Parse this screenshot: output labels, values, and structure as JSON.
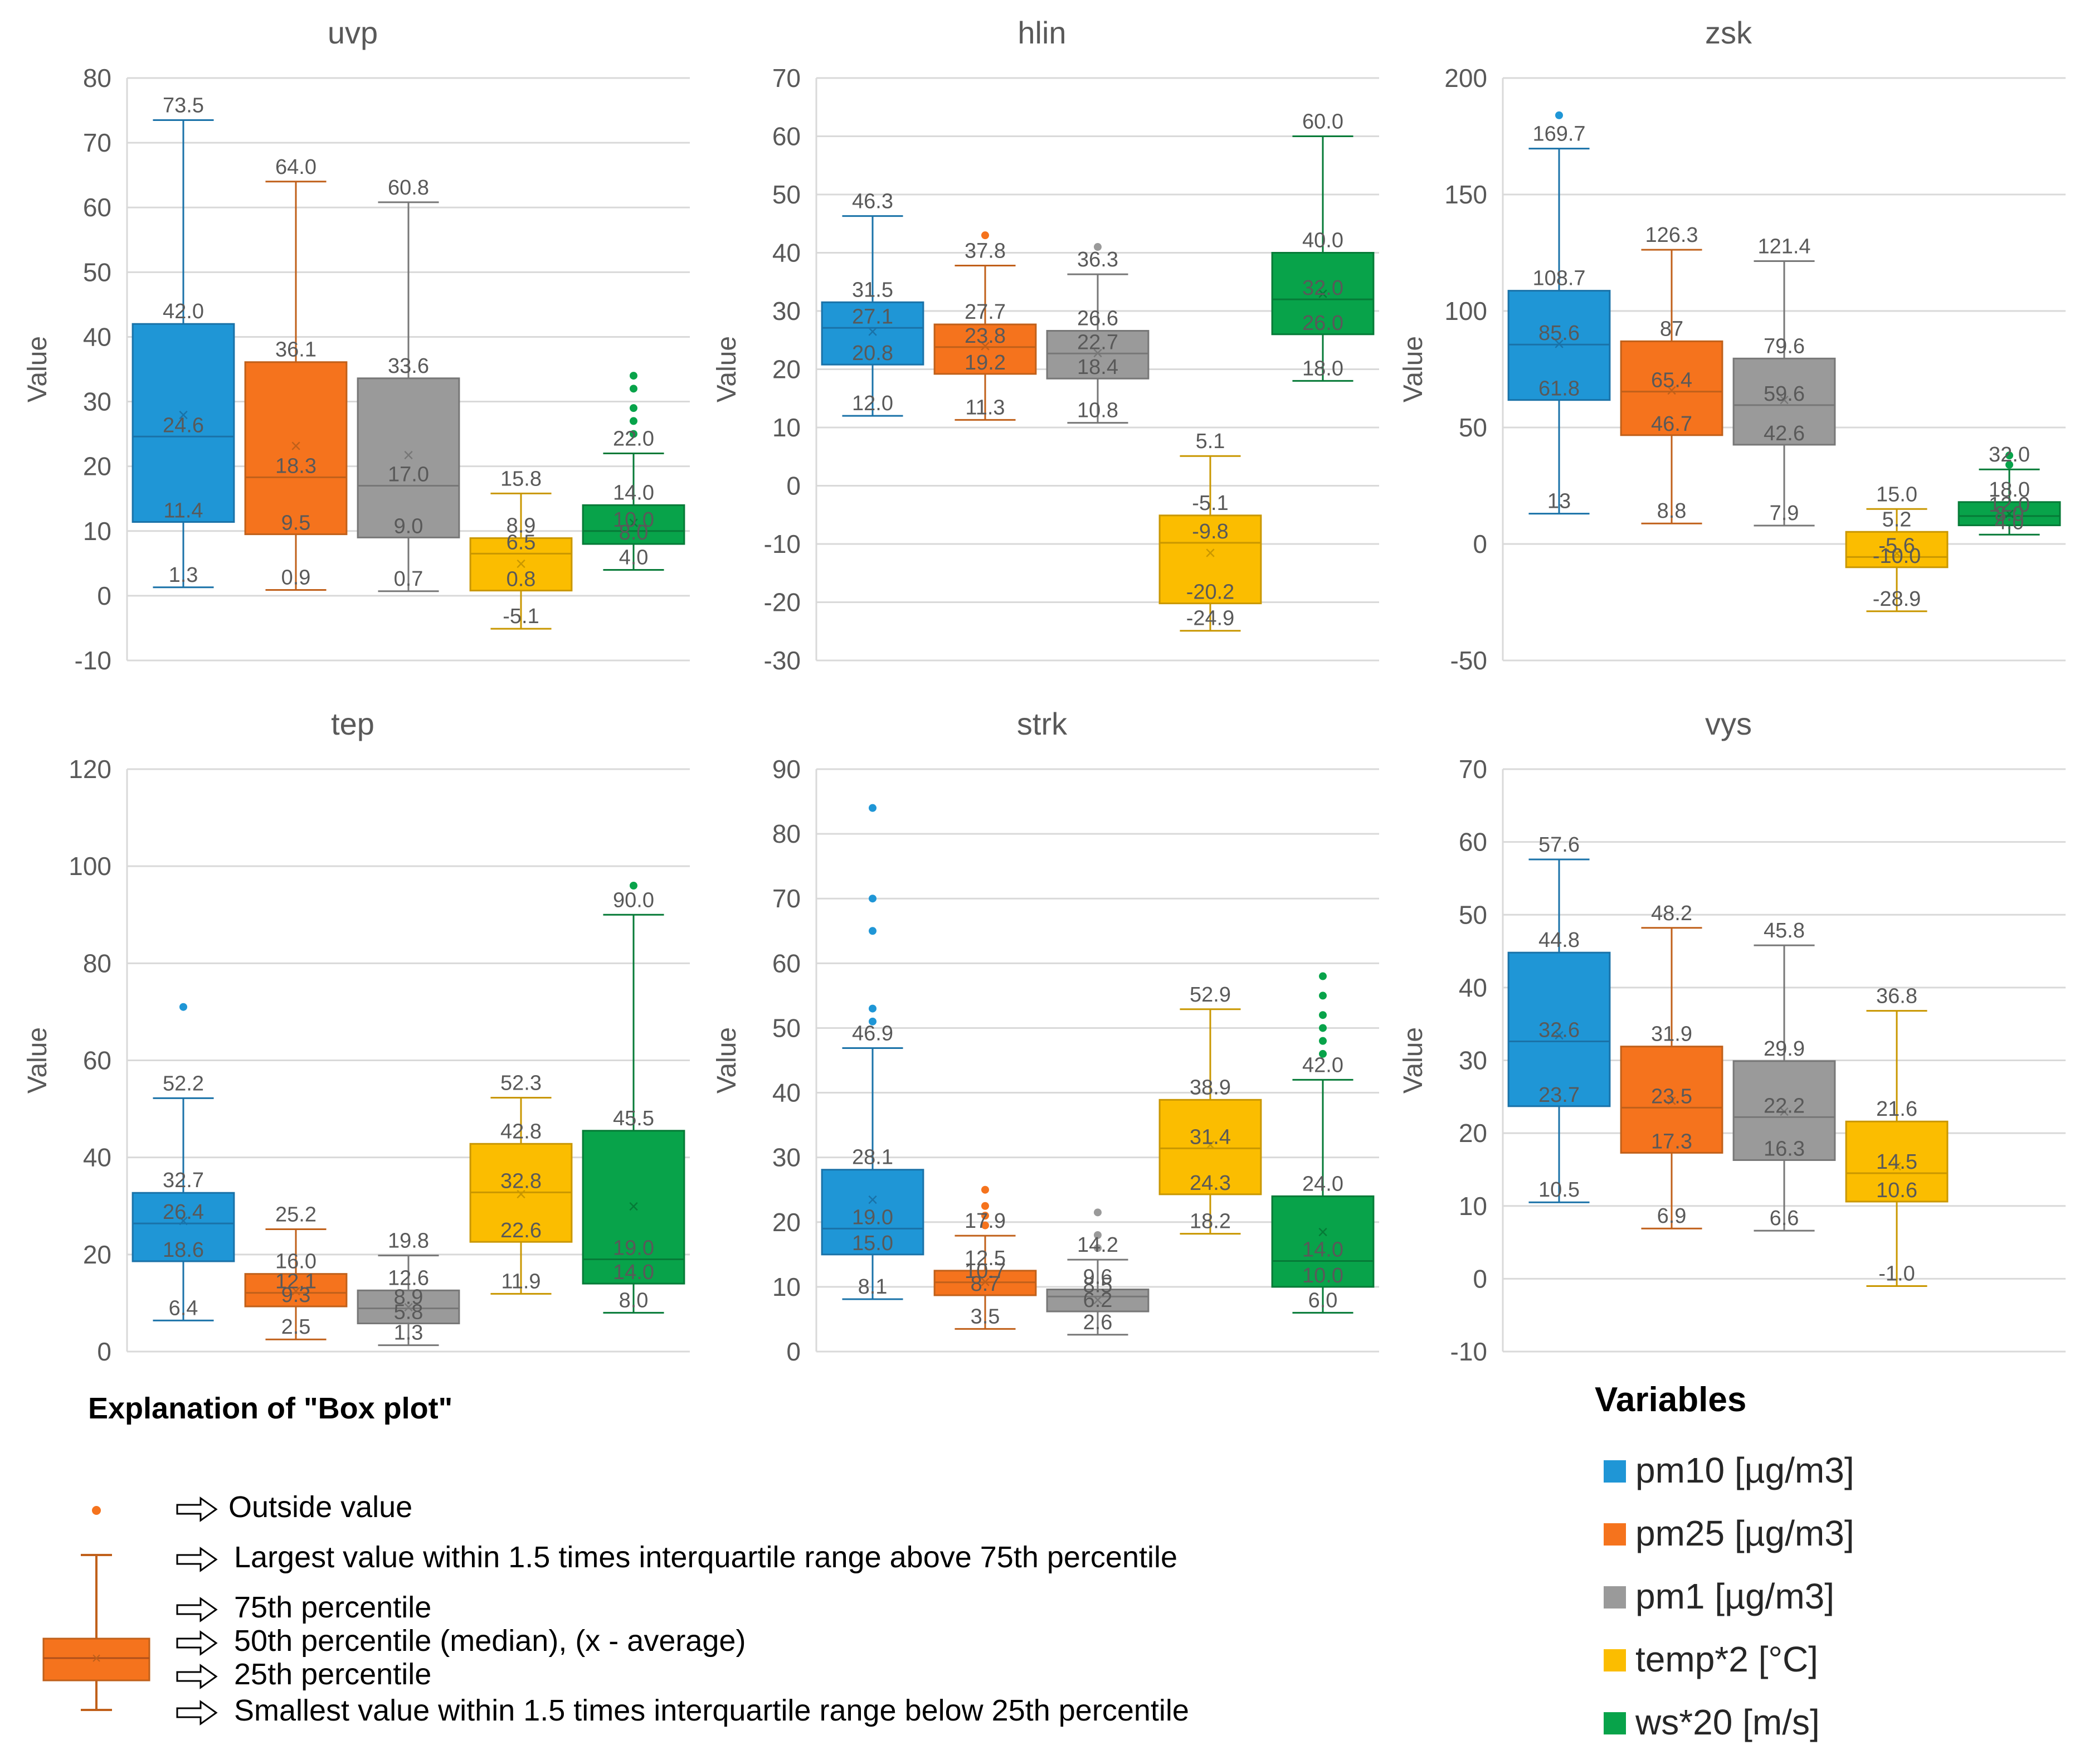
{
  "colors": {
    "pm10": "#1f96d6",
    "pm25": "#f5731d",
    "pm1": "#9a9a9a",
    "temp": "#fbbd00",
    "ws": "#08a34a",
    "grid": "#d9d9d9",
    "text": "#595959"
  },
  "axis_label": "Value",
  "explanation": {
    "title": "Explanation of \"Box plot\"",
    "items": [
      "Outside value",
      "Largest value within 1.5 times interquartile range above 75th percentile",
      "75th percentile",
      "50th percentile (median), (x - average)",
      "25th percentile",
      "Smallest value within 1.5 times interquartile range below 25th percentile"
    ]
  },
  "legend": {
    "title": "Variables",
    "items": [
      {
        "key": "pm10",
        "label": "pm10 [µg/m3]"
      },
      {
        "key": "pm25",
        "label": "pm25 [µg/m3]"
      },
      {
        "key": "pm1",
        "label": "pm1 [µg/m3]"
      },
      {
        "key": "temp",
        "label": "temp*2 [°C]"
      },
      {
        "key": "ws",
        "label": "ws*20 [m/s]"
      }
    ]
  },
  "chart_data": [
    {
      "type": "box",
      "title": "uvp",
      "ylabel": "Value",
      "ylim": [
        -10,
        80
      ],
      "yticks": [
        -10,
        0,
        10,
        20,
        30,
        40,
        50,
        60,
        70,
        80
      ],
      "series": [
        {
          "name": "pm10",
          "min": 1.3,
          "q1": 11.4,
          "median": 24.6,
          "q3": 42.0,
          "max": 73.5,
          "mean": 28.0,
          "outliers": [],
          "labels": {
            "max": "73.5",
            "q3": "42.0",
            "median": "24.6",
            "q1": "11.4",
            "min": "1.3"
          }
        },
        {
          "name": "pm25",
          "min": 0.9,
          "q1": 9.5,
          "median": 18.3,
          "q3": 36.1,
          "max": 64.0,
          "mean": 23.2,
          "outliers": [],
          "labels": {
            "max": "64.0",
            "q3": "36.1",
            "median": "18.3",
            "q1": "9.5",
            "min": "0.9"
          }
        },
        {
          "name": "pm1",
          "min": 0.7,
          "q1": 9.0,
          "median": 17.0,
          "q3": 33.6,
          "max": 60.8,
          "mean": 21.8,
          "outliers": [],
          "labels": {
            "max": "60.8",
            "q3": "33.6",
            "median": "17.0",
            "q1": "9.0",
            "min": "0.7"
          }
        },
        {
          "name": "temp",
          "min": -5.1,
          "q1": 0.8,
          "median": 6.5,
          "q3": 8.9,
          "max": 15.8,
          "mean": 5.0,
          "outliers": [],
          "labels": {
            "max": "15.8",
            "q3": "8.9",
            "median": "6.5",
            "q1": "0.8",
            "min": "-5.1"
          }
        },
        {
          "name": "ws",
          "min": 4.0,
          "q1": 8.0,
          "median": 10.0,
          "q3": 14.0,
          "max": 22.0,
          "mean": 11.3,
          "outliers": [
            25,
            27,
            29,
            32,
            34
          ],
          "labels": {
            "max": "22.0",
            "q3": "14.0",
            "median": "10.0",
            "q1": "8.0",
            "min": "4.0"
          }
        }
      ]
    },
    {
      "type": "box",
      "title": "hlin",
      "ylabel": "Value",
      "ylim": [
        -30,
        70
      ],
      "yticks": [
        -30,
        -20,
        -10,
        0,
        10,
        20,
        30,
        40,
        50,
        60,
        70
      ],
      "series": [
        {
          "name": "pm10",
          "min": 12.0,
          "q1": 20.8,
          "median": 27.1,
          "q3": 31.5,
          "max": 46.3,
          "mean": 26.5,
          "outliers": [],
          "labels": {
            "max": "46.3",
            "q3": "31.5",
            "median": "27.1",
            "q1": "20.8",
            "min": "12.0"
          }
        },
        {
          "name": "pm25",
          "min": 11.3,
          "q1": 19.2,
          "median": 23.8,
          "q3": 27.7,
          "max": 37.8,
          "mean": 24.0,
          "outliers": [
            43
          ],
          "labels": {
            "max": "37.8",
            "q3": "27.7",
            "median": "23.8",
            "q1": "19.2",
            "min": "11.3"
          }
        },
        {
          "name": "pm1",
          "min": 10.8,
          "q1": 18.4,
          "median": 22.7,
          "q3": 26.6,
          "max": 36.3,
          "mean": 22.8,
          "outliers": [
            41
          ],
          "labels": {
            "max": "36.3",
            "q3": "26.6",
            "median": "22.7",
            "q1": "18.4",
            "min": "10.8"
          }
        },
        {
          "name": "temp",
          "min": -24.9,
          "q1": -20.2,
          "median": -9.8,
          "q3": -5.1,
          "max": 5.1,
          "mean": -11.5,
          "outliers": [],
          "labels": {
            "max": "5.1",
            "q3": "-5.1",
            "median": "-9.8",
            "q1": "-20.2",
            "min": "-24.9"
          }
        },
        {
          "name": "ws",
          "min": 18.0,
          "q1": 26.0,
          "median": 32.0,
          "q3": 40.0,
          "max": 60.0,
          "mean": 33.0,
          "outliers": [],
          "labels": {
            "max": "60.0",
            "q3": "40.0",
            "median": "32.0",
            "q1": "26.0",
            "min": "18.0"
          }
        }
      ]
    },
    {
      "type": "box",
      "title": "zsk",
      "ylabel": "Value",
      "ylim": [
        -50,
        200
      ],
      "yticks": [
        -50,
        0,
        50,
        100,
        150,
        200
      ],
      "series": [
        {
          "name": "pm10",
          "min": 13,
          "q1": 61.8,
          "median": 85.6,
          "q3": 108.7,
          "max": 169.7,
          "mean": 86.0,
          "outliers": [
            184
          ],
          "labels": {
            "max": "169.7",
            "q3": "108.7",
            "median": "85.6",
            "q1": "61.8",
            "min": "13"
          }
        },
        {
          "name": "pm25",
          "min": 8.8,
          "q1": 46.7,
          "median": 65.4,
          "q3": 87,
          "max": 126.3,
          "mean": 66.0,
          "outliers": [],
          "labels": {
            "max": "126.3",
            "q3": "87",
            "median": "65.4",
            "q1": "46.7",
            "min": "8.8"
          }
        },
        {
          "name": "pm1",
          "min": 7.9,
          "q1": 42.6,
          "median": 59.6,
          "q3": 79.6,
          "max": 121.4,
          "mean": 62.0,
          "outliers": [],
          "labels": {
            "max": "121.4",
            "q3": "79.6",
            "median": "59.6",
            "q1": "42.6",
            "min": "7.9"
          }
        },
        {
          "name": "temp",
          "min": -28.9,
          "q1": -10.0,
          "median": -5.6,
          "q3": 5.2,
          "max": 15.0,
          "mean": -4.0,
          "outliers": [],
          "labels": {
            "max": "15.0",
            "q3": "5.2",
            "median": "-5.6",
            "q1": "-10.0",
            "min": "-28.9"
          }
        },
        {
          "name": "ws",
          "min": 4.0,
          "q1": 8.0,
          "median": 12.0,
          "q3": 18.0,
          "max": 32.0,
          "mean": 13.0,
          "outliers": [
            34,
            38
          ],
          "labels": {
            "max": "32.0",
            "q3": "18.0",
            "median": "12.0",
            "q1": "8.0",
            "min": "4.0"
          }
        }
      ]
    },
    {
      "type": "box",
      "title": "tep",
      "ylabel": "Value",
      "ylim": [
        0,
        120
      ],
      "yticks": [
        0,
        20,
        40,
        60,
        80,
        100,
        120
      ],
      "series": [
        {
          "name": "pm10",
          "min": 6.4,
          "q1": 18.6,
          "median": 26.4,
          "q3": 32.7,
          "max": 52.2,
          "mean": 27.0,
          "outliers": [
            71
          ],
          "labels": {
            "max": "52.2",
            "q3": "32.7",
            "median": "26.4",
            "q1": "18.6",
            "min": "6.4"
          }
        },
        {
          "name": "pm25",
          "min": 2.5,
          "q1": 9.3,
          "median": 12.1,
          "q3": 16.0,
          "max": 25.2,
          "mean": 12.5,
          "outliers": [],
          "labels": {
            "max": "25.2",
            "q3": "16.0",
            "median": "12.1",
            "q1": "9.3",
            "min": "2.5"
          }
        },
        {
          "name": "pm1",
          "min": 1.3,
          "q1": 5.8,
          "median": 8.9,
          "q3": 12.6,
          "max": 19.8,
          "mean": 9.2,
          "outliers": [],
          "labels": {
            "max": "19.8",
            "q3": "12.6",
            "median": "8.9",
            "q1": "5.8",
            "min": "1.3"
          }
        },
        {
          "name": "temp",
          "min": 11.9,
          "q1": 22.6,
          "median": 32.8,
          "q3": 42.8,
          "max": 52.3,
          "mean": 32.5,
          "outliers": [],
          "labels": {
            "max": "52.3",
            "q3": "42.8",
            "median": "32.8",
            "q1": "22.6",
            "min": "11.9"
          }
        },
        {
          "name": "ws",
          "min": 8.0,
          "q1": 14.0,
          "median": 19.0,
          "q3": 45.5,
          "max": 90.0,
          "mean": 30.0,
          "outliers": [
            96
          ],
          "labels": {
            "max": "90.0",
            "q3": "45.5",
            "median": "19.0",
            "q1": "14.0",
            "min": "8.0"
          }
        }
      ]
    },
    {
      "type": "box",
      "title": "strk",
      "ylabel": "Value",
      "ylim": [
        0,
        90
      ],
      "yticks": [
        0,
        10,
        20,
        30,
        40,
        50,
        60,
        70,
        80,
        90
      ],
      "series": [
        {
          "name": "pm10",
          "min": 8.1,
          "q1": 15.0,
          "median": 19.0,
          "q3": 28.1,
          "max": 46.9,
          "mean": 23.5,
          "outliers": [
            51,
            53,
            65,
            70,
            84
          ],
          "labels": {
            "max": "46.9",
            "q3": "28.1",
            "median": "19.0",
            "q1": "15.0",
            "min": "8.1"
          }
        },
        {
          "name": "pm25",
          "min": 3.5,
          "q1": 8.7,
          "median": 10.7,
          "q3": 12.5,
          "max": 17.9,
          "mean": 10.8,
          "outliers": [
            19.5,
            21,
            22.5,
            25
          ],
          "labels": {
            "max": "17.9",
            "q3": "12.5",
            "median": "10.7",
            "q1": "8.7",
            "min": "3.5"
          }
        },
        {
          "name": "pm1",
          "min": 2.6,
          "q1": 6.2,
          "median": 8.5,
          "q3": 9.6,
          "max": 14.2,
          "mean": 8.0,
          "outliers": [
            16,
            18,
            21.5
          ],
          "labels": {
            "max": "14.2",
            "q3": "9.6",
            "median": "8.5",
            "q1": "6.2",
            "min": "2.6"
          }
        },
        {
          "name": "temp",
          "min": 18.2,
          "q1": 24.3,
          "median": 31.4,
          "q3": 38.9,
          "max": 52.9,
          "mean": 32.0,
          "outliers": [],
          "labels": {
            "max": "52.9",
            "q3": "38.9",
            "median": "31.4",
            "q1": "24.3",
            "min": "18.2"
          }
        },
        {
          "name": "ws",
          "min": 6.0,
          "q1": 10.0,
          "median": 14.0,
          "q3": 24.0,
          "max": 42.0,
          "mean": 18.5,
          "outliers": [
            46,
            48,
            50,
            52,
            55,
            58
          ],
          "labels": {
            "max": "42.0",
            "q3": "24.0",
            "median": "14.0",
            "q1": "10.0",
            "min": "6.0"
          }
        }
      ]
    },
    {
      "type": "box",
      "title": "vys",
      "ylabel": "Value",
      "ylim": [
        -10,
        70
      ],
      "yticks": [
        -10,
        0,
        10,
        20,
        30,
        40,
        50,
        60,
        70
      ],
      "series": [
        {
          "name": "pm10",
          "min": 10.5,
          "q1": 23.7,
          "median": 32.6,
          "q3": 44.8,
          "max": 57.6,
          "mean": 33.5,
          "outliers": [],
          "labels": {
            "max": "57.6",
            "q3": "44.8",
            "median": "32.6",
            "q1": "23.7",
            "min": "10.5"
          }
        },
        {
          "name": "pm25",
          "min": 6.9,
          "q1": 17.3,
          "median": 23.5,
          "q3": 31.9,
          "max": 48.2,
          "mean": 24.5,
          "outliers": [],
          "labels": {
            "max": "48.2",
            "q3": "31.9",
            "median": "23.5",
            "q1": "17.3",
            "min": "6.9"
          }
        },
        {
          "name": "pm1",
          "min": 6.6,
          "q1": 16.3,
          "median": 22.2,
          "q3": 29.9,
          "max": 45.8,
          "mean": 23.0,
          "outliers": [],
          "labels": {
            "max": "45.8",
            "q3": "29.9",
            "median": "22.2",
            "q1": "16.3",
            "min": "6.6"
          }
        },
        {
          "name": "temp",
          "min": -1.0,
          "q1": 10.6,
          "median": 14.5,
          "q3": 21.6,
          "max": 36.8,
          "mean": 15.5,
          "outliers": [],
          "labels": {
            "max": "36.8",
            "q3": "21.6",
            "median": "14.5",
            "q1": "10.6",
            "min": "-1.0"
          }
        }
      ]
    }
  ]
}
